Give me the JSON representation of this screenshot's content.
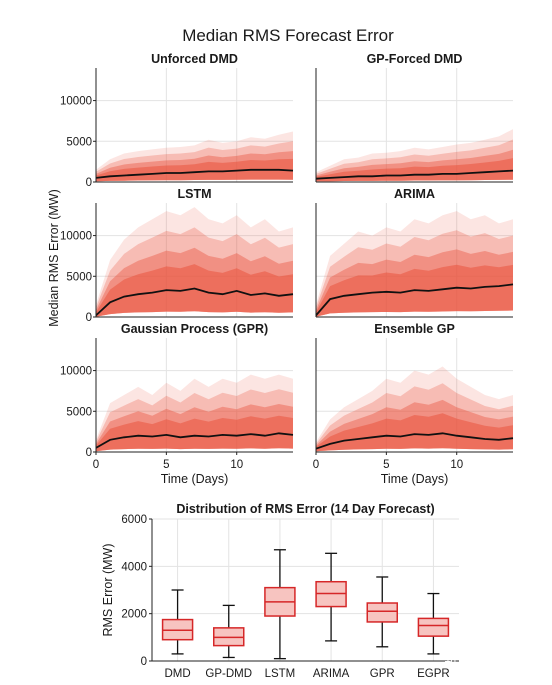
{
  "figure": {
    "title": "Median RMS Forecast Error",
    "ylabel": "Median RMS Error (MW)",
    "xlabel": "Time (Days)",
    "watermark": "知乎 @青阳子007"
  },
  "colors": {
    "median_line": "#111111",
    "envelope": "#e8533d",
    "box_fill": "#f7c4c0",
    "box_edge": "#d62728",
    "grid": "#e3e3e3"
  },
  "chart_data": [
    {
      "type": "line",
      "title": "Unforced DMD",
      "xlim": [
        0,
        14
      ],
      "ylim": [
        0,
        14000
      ],
      "yticks": [
        0,
        5000,
        10000
      ],
      "xticks": [
        0,
        5,
        10
      ],
      "series": [
        {
          "values": [
            500,
            700,
            800,
            900,
            1000,
            1100,
            1100,
            1200,
            1300,
            1300,
            1400,
            1500,
            1500,
            1500,
            1400
          ]
        }
      ],
      "envelope_upper": [
        1500,
        2800,
        3500,
        3800,
        4000,
        4200,
        4300,
        4500,
        5200,
        4800,
        5000,
        5500,
        5300,
        5800,
        6200
      ]
    },
    {
      "type": "line",
      "title": "GP-Forced DMD",
      "xlim": [
        0,
        14
      ],
      "ylim": [
        0,
        14000
      ],
      "yticks": [
        0,
        5000,
        10000
      ],
      "xticks": [
        0,
        5,
        10
      ],
      "series": [
        {
          "values": [
            400,
            500,
            600,
            700,
            700,
            800,
            800,
            900,
            900,
            1000,
            1000,
            1100,
            1200,
            1300,
            1400
          ]
        }
      ],
      "envelope_upper": [
        1200,
        2000,
        2800,
        3000,
        3500,
        3600,
        3800,
        4200,
        4000,
        4300,
        4600,
        4800,
        5200,
        5600,
        6500
      ]
    },
    {
      "type": "line",
      "title": "LSTM",
      "xlim": [
        0,
        14
      ],
      "ylim": [
        0,
        14000
      ],
      "yticks": [
        0,
        5000,
        10000
      ],
      "xticks": [
        0,
        5,
        10
      ],
      "series": [
        {
          "values": [
            200,
            1800,
            2500,
            2800,
            3000,
            3300,
            3200,
            3500,
            3000,
            2800,
            3200,
            2700,
            2900,
            2600,
            2800
          ]
        }
      ],
      "envelope_upper": [
        1500,
        7000,
        9500,
        11000,
        12000,
        13000,
        12500,
        13500,
        12000,
        11500,
        12500,
        11000,
        12000,
        10500,
        11000
      ]
    },
    {
      "type": "line",
      "title": "ARIMA",
      "xlim": [
        0,
        14
      ],
      "ylim": [
        0,
        14000
      ],
      "yticks": [
        0,
        5000,
        10000
      ],
      "xticks": [
        0,
        5,
        10
      ],
      "series": [
        {
          "values": [
            200,
            2200,
            2600,
            2800,
            3000,
            3100,
            3000,
            3300,
            3200,
            3400,
            3600,
            3500,
            3700,
            3800,
            4000
          ]
        }
      ],
      "envelope_upper": [
        1500,
        7500,
        9000,
        10500,
        10000,
        11000,
        10500,
        12000,
        11500,
        12500,
        13000,
        12000,
        12500,
        11500,
        12000
      ]
    },
    {
      "type": "line",
      "title": "Gaussian Process (GPR)",
      "xlim": [
        0,
        14
      ],
      "ylim": [
        0,
        14000
      ],
      "yticks": [
        0,
        5000,
        10000
      ],
      "xticks": [
        0,
        5,
        10
      ],
      "xlabel": "Time (Days)",
      "series": [
        {
          "values": [
            500,
            1500,
            1800,
            2000,
            1900,
            2100,
            1800,
            2000,
            1900,
            2100,
            2000,
            2200,
            2000,
            2300,
            2100
          ]
        }
      ],
      "envelope_upper": [
        1500,
        6000,
        7000,
        8000,
        7000,
        8500,
        7500,
        9000,
        8000,
        9000,
        8500,
        9500,
        9000,
        9500,
        9000
      ]
    },
    {
      "type": "line",
      "title": "Ensemble GP",
      "xlim": [
        0,
        14
      ],
      "ylim": [
        0,
        14000
      ],
      "yticks": [
        0,
        5000,
        10000
      ],
      "xticks": [
        0,
        5,
        10
      ],
      "xlabel": "Time (Days)",
      "series": [
        {
          "values": [
            400,
            1000,
            1400,
            1600,
            1800,
            2000,
            1900,
            2200,
            2100,
            2300,
            2000,
            1800,
            1600,
            1500,
            1700
          ]
        }
      ],
      "envelope_upper": [
        1200,
        4000,
        5500,
        6500,
        7500,
        9000,
        8500,
        10000,
        9500,
        10500,
        9000,
        8000,
        7000,
        6500,
        7000
      ]
    },
    {
      "type": "box",
      "title": "Distribution of RMS Error (14 Day Forecast)",
      "ylabel": "RMS Error (MW)",
      "ylim": [
        0,
        6000
      ],
      "yticks": [
        0,
        2000,
        4000,
        6000
      ],
      "categories": [
        "DMD",
        "GP-DMD",
        "LSTM",
        "ARIMA",
        "GPR",
        "EGPR"
      ],
      "boxes": [
        {
          "min": 300,
          "q1": 900,
          "median": 1300,
          "q3": 1750,
          "max": 3000
        },
        {
          "min": 150,
          "q1": 650,
          "median": 1000,
          "q3": 1400,
          "max": 2350
        },
        {
          "min": 100,
          "q1": 1900,
          "median": 2500,
          "q3": 3100,
          "max": 4700
        },
        {
          "min": 850,
          "q1": 2300,
          "median": 2850,
          "q3": 3350,
          "max": 4550
        },
        {
          "min": 600,
          "q1": 1650,
          "median": 2100,
          "q3": 2450,
          "max": 3550
        },
        {
          "min": 300,
          "q1": 1050,
          "median": 1500,
          "q3": 1800,
          "max": 2850
        }
      ]
    }
  ]
}
